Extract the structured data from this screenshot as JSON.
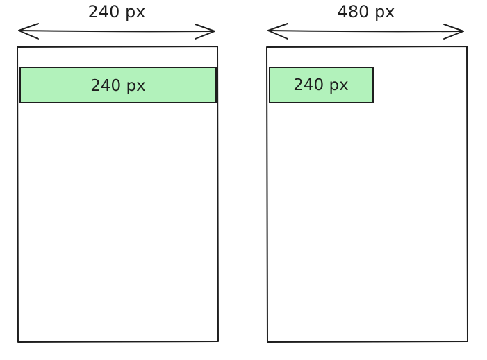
{
  "diagram": {
    "left_panel": {
      "width_label": "240 px",
      "bar_label": "240 px",
      "bar_fill": "#b2f2bb"
    },
    "right_panel": {
      "width_label": "480 px",
      "bar_label": "240 px",
      "bar_fill": "#b2f2bb"
    }
  },
  "colors": {
    "stroke": "#1e1e1e",
    "background": "#ffffff",
    "bar_fill": "#b2f2bb"
  }
}
